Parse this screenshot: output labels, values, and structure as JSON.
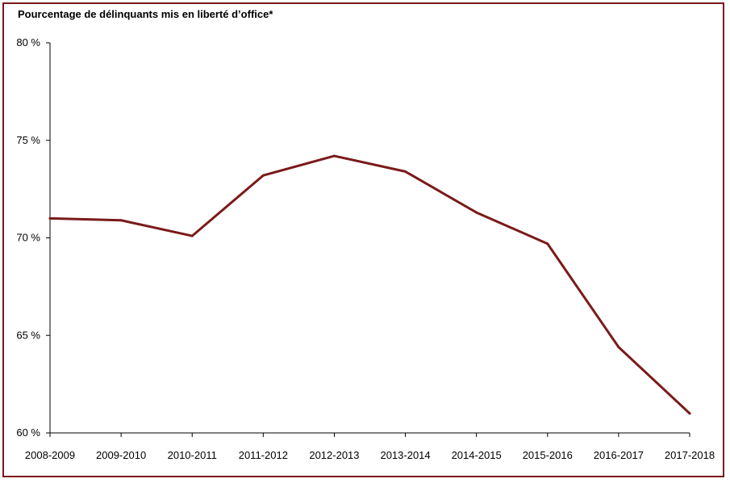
{
  "chart_data": {
    "type": "line",
    "title": "Pourcentage de délinquants mis en liberté d’office*",
    "categories": [
      "2008-2009",
      "2009-2010",
      "2010-2011",
      "2011-2012",
      "2012-2013",
      "2013-2014",
      "2014-2015",
      "2015-2016",
      "2016-2017",
      "2017-2018"
    ],
    "series": [
      {
        "values": [
          71.0,
          70.9,
          70.1,
          73.2,
          74.2,
          73.4,
          71.3,
          69.7,
          64.4,
          61.0
        ]
      }
    ],
    "ylim": [
      60,
      80
    ],
    "yticks": [
      60,
      65,
      70,
      75,
      80
    ],
    "ytick_labels": [
      "60 %",
      "65 %",
      "70 %",
      "75 %",
      "80 %"
    ],
    "line_color": "#7b1a1a",
    "grid": false
  }
}
